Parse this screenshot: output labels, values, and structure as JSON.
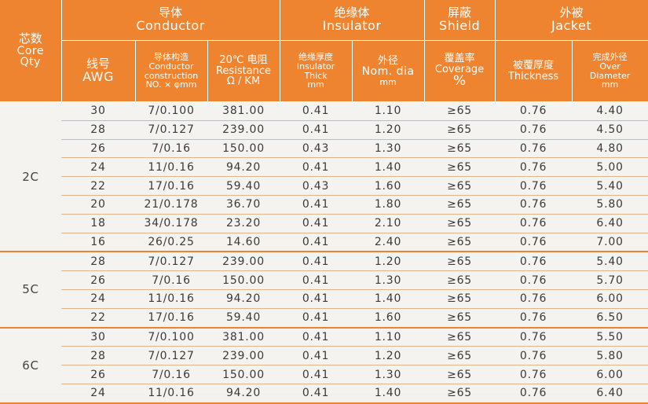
{
  "header": {
    "qty": {
      "zh": "芯数",
      "en1": "Core",
      "en2": "Qty"
    },
    "conductor": {
      "zh": "导体",
      "en": "Conductor"
    },
    "insulator": {
      "zh": "绝缘体",
      "en": "Insulator"
    },
    "shield": {
      "zh": "屏蔽",
      "en": "Shield"
    },
    "jacket": {
      "zh": "外被",
      "en": "Jacket"
    },
    "awg": {
      "zh": "线号",
      "en": "AWG"
    },
    "construction": {
      "zh": "导体构造",
      "en1": "Conductor",
      "en2": "construction",
      "unit": "NO. × φmm"
    },
    "resistance": {
      "zh": "20℃ 电阻",
      "en": "Resistance",
      "unit": "Ω / KM"
    },
    "ins_thick": {
      "zh": "绝缘厚度",
      "en1": "Insulator",
      "en2": "Thick",
      "unit": "mm"
    },
    "ins_dia": {
      "zh": "外径",
      "en": "Nom. dia",
      "unit": "mm"
    },
    "coverage": {
      "zh": "覆盖率",
      "en": "Coverage",
      "unit": "%"
    },
    "jk_thick": {
      "zh": "被覆厚度",
      "en": "Thickness"
    },
    "od": {
      "zh": "完成外径",
      "en1": "Over",
      "en2": "Diameter",
      "unit": "mm"
    }
  },
  "groups": [
    {
      "label": "2C",
      "rows": [
        [
          "30",
          "7/0.100",
          "381.00",
          "0.41",
          "1.10",
          "≥65",
          "0.76",
          "4.40"
        ],
        [
          "28",
          "7/0.127",
          "239.00",
          "0.41",
          "1.20",
          "≥65",
          "0.76",
          "4.50"
        ],
        [
          "26",
          "7/0.16",
          "150.00",
          "0.43",
          "1.30",
          "≥65",
          "0.76",
          "4.80"
        ],
        [
          "24",
          "11/0.16",
          "94.20",
          "0.41",
          "1.40",
          "≥65",
          "0.76",
          "5.00"
        ],
        [
          "22",
          "17/0.16",
          "59.40",
          "0.43",
          "1.60",
          "≥65",
          "0.76",
          "5.40"
        ],
        [
          "20",
          "21/0.178",
          "36.70",
          "0.41",
          "1.80",
          "≥65",
          "0.76",
          "5.80"
        ],
        [
          "18",
          "34/0.178",
          "23.20",
          "0.41",
          "2.10",
          "≥65",
          "0.76",
          "6.40"
        ],
        [
          "16",
          "26/0.25",
          "14.60",
          "0.41",
          "2.40",
          "≥65",
          "0.76",
          "7.00"
        ]
      ]
    },
    {
      "label": "5C",
      "rows": [
        [
          "28",
          "7/0.127",
          "239.00",
          "0.41",
          "1.20",
          "≥65",
          "0.76",
          "5.40"
        ],
        [
          "26",
          "7/0.16",
          "150.00",
          "0.41",
          "1.30",
          "≥65",
          "0.76",
          "5.70"
        ],
        [
          "24",
          "11/0.16",
          "94.20",
          "0.41",
          "1.40",
          "≥65",
          "0.76",
          "6.00"
        ],
        [
          "22",
          "17/0.16",
          "59.40",
          "0.41",
          "1.60",
          "≥65",
          "0.76",
          "6.50"
        ]
      ]
    },
    {
      "label": "6C",
      "rows": [
        [
          "30",
          "7/0.100",
          "381.00",
          "0.41",
          "1.10",
          "≥65",
          "0.76",
          "5.50"
        ],
        [
          "28",
          "7/0.127",
          "239.00",
          "0.41",
          "1.20",
          "≥65",
          "0.76",
          "5.80"
        ],
        [
          "26",
          "7/0.16",
          "150.00",
          "0.41",
          "1.30",
          "≥65",
          "0.76",
          "6.00"
        ],
        [
          "24",
          "11/0.16",
          "94.20",
          "0.41",
          "1.40",
          "≥65",
          "0.76",
          "6.40"
        ]
      ]
    }
  ]
}
